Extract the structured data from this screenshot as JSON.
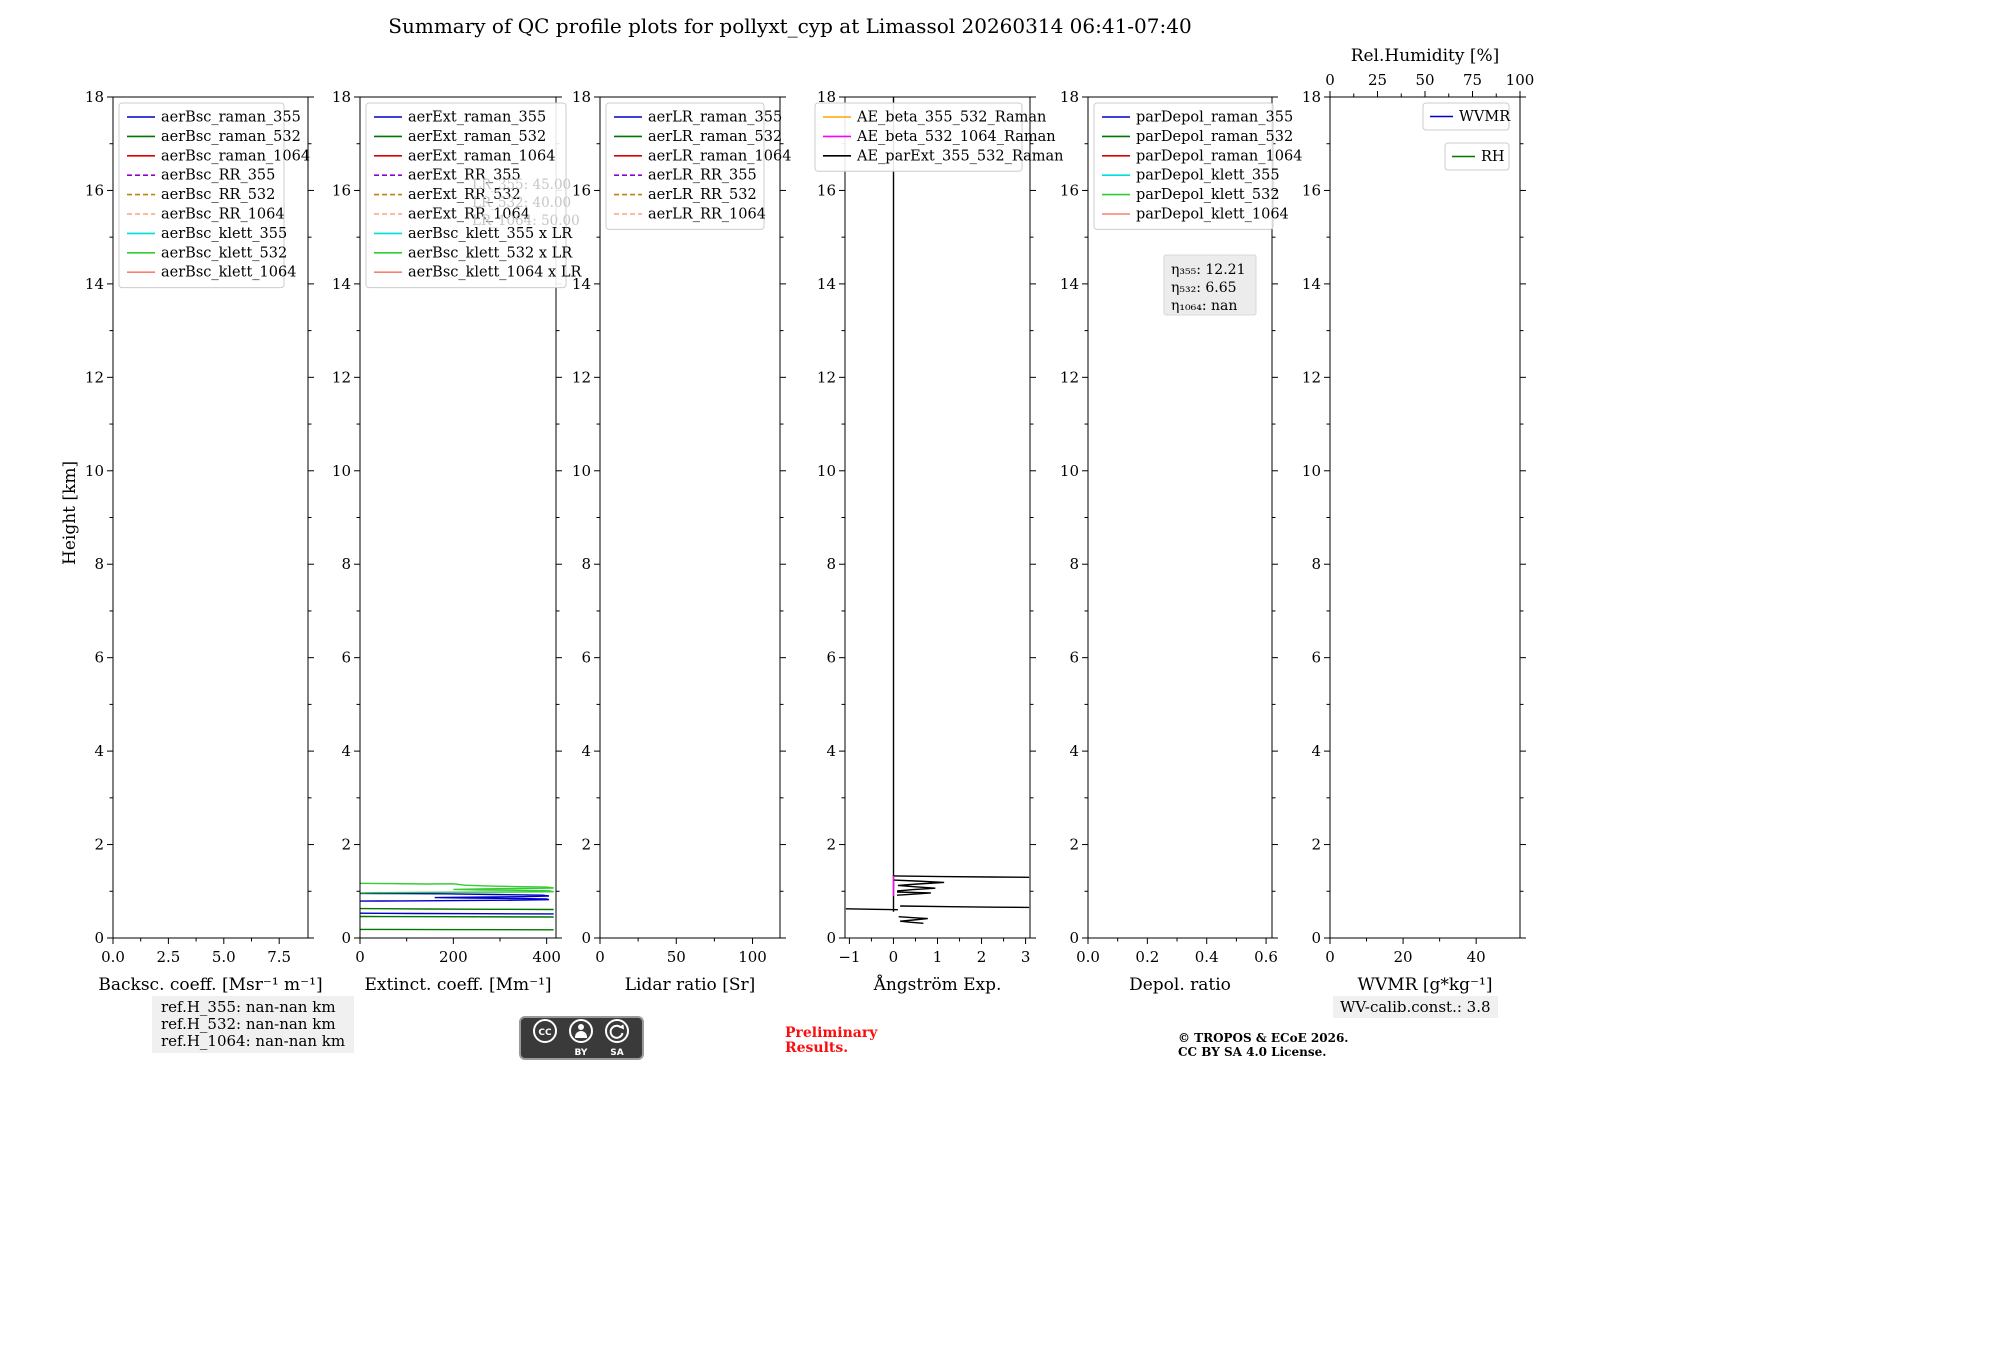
{
  "title": "Summary of QC profile plots for pollyxt_cyp at Limassol 20260314 06:41-07:40",
  "footer": {
    "refs": [
      "ref.H_355: nan-nan km",
      "ref.H_532: nan-nan km",
      "ref.H_1064: nan-nan km"
    ],
    "preliminary": [
      "Preliminary",
      "Results."
    ],
    "copyright": [
      "© TROPOS & ECoE 2026.",
      "CC BY SA 4.0 License."
    ],
    "wv_calib": "WV-calib.const.: 3.8",
    "cc_badge": {
      "cc": "CC",
      "by": "BY",
      "sa": "SA"
    }
  },
  "chart_data": {
    "type": "line",
    "title": "Summary of QC profile plots for pollyxt_cyp at Limassol 20260314 06:41-07:40",
    "ylabel": "Height [km]",
    "ylim": [
      0,
      18
    ],
    "yticks": [
      0,
      2,
      4,
      6,
      8,
      10,
      12,
      14,
      16,
      18
    ],
    "panels": [
      {
        "xlabel": "Backsc. coeff. [Msr⁻¹ m⁻¹]",
        "xlim": [
          0,
          8.8
        ],
        "xticks": [
          0,
          2.5,
          5,
          7.5
        ],
        "xtick_labels": [
          "0.0",
          "2.5",
          "5.0",
          "7.5"
        ],
        "legend": [
          {
            "label": "aerBsc_raman_355",
            "color": "#0000cc"
          },
          {
            "label": "aerBsc_raman_532",
            "color": "#007700"
          },
          {
            "label": "aerBsc_raman_1064",
            "color": "#dd0000"
          },
          {
            "label": "aerBsc_RR_355",
            "color": "#9400d3",
            "dash": true
          },
          {
            "label": "aerBsc_RR_532",
            "color": "#b8860b",
            "dash": true
          },
          {
            "label": "aerBsc_RR_1064",
            "color": "#ffa07a",
            "dash": true
          },
          {
            "label": "aerBsc_klett_355",
            "color": "#00dddd"
          },
          {
            "label": "aerBsc_klett_532",
            "color": "#33cc33"
          },
          {
            "label": "aerBsc_klett_1064",
            "color": "#fa8072"
          }
        ],
        "series": []
      },
      {
        "xlabel": "Extinct. coeff. [Mm⁻¹]",
        "xlim": [
          0,
          420
        ],
        "xticks": [
          0,
          200,
          400
        ],
        "xtick_labels": [
          "0",
          "200",
          "400"
        ],
        "legend": [
          {
            "label": "aerExt_raman_355",
            "color": "#0000cc"
          },
          {
            "label": "aerExt_raman_532",
            "color": "#007700"
          },
          {
            "label": "aerExt_raman_1064",
            "color": "#dd0000"
          },
          {
            "label": "aerExt_RR_355",
            "color": "#9400d3",
            "dash": true
          },
          {
            "label": "aerExt_RR_532",
            "color": "#b8860b",
            "dash": true
          },
          {
            "label": "aerExt_RR_1064",
            "color": "#ffa07a",
            "dash": true
          },
          {
            "label": "aerBsc_klett_355 x LR",
            "color": "#00dddd"
          },
          {
            "label": "aerBsc_klett_532 x LR",
            "color": "#33cc33"
          },
          {
            "label": "aerBsc_klett_1064 x LR",
            "color": "#fa8072"
          }
        ],
        "inline_text": {
          "color": "#c6c6c6",
          "lines": [
            "LR_355: 45.00",
            "LR_532: 40.00",
            "LR_1064: 50.00"
          ]
        },
        "series": [
          {
            "name": "aerExt_raman_355",
            "color": "#0000cc",
            "segments": [
              [
                [
                  0,
                  0.53
                ],
                [
                  120,
                  0.525
                ],
                [
                  260,
                  0.52
                ],
                [
                  415,
                  0.515
                ]
              ],
              [
                [
                  0,
                  0.955
                ],
                [
                  80,
                  0.95
                ],
                [
                  180,
                  0.945
                ],
                [
                  290,
                  0.93
                ],
                [
                  392,
                  0.915
                ],
                [
                  405,
                  0.9
                ],
                [
                  350,
                  0.885
                ],
                [
                  260,
                  0.875
                ],
                [
                  160,
                  0.865
                ],
                [
                  235,
                  0.855
                ],
                [
                  330,
                  0.845
                ],
                [
                  400,
                  0.835
                ],
                [
                  405,
                  0.82
                ],
                [
                  330,
                  0.81
                ],
                [
                  210,
                  0.8
                ],
                [
                  90,
                  0.793
                ],
                [
                  0,
                  0.79
                ]
              ]
            ]
          },
          {
            "name": "aerExt_raman_532",
            "color": "#007700",
            "segments": [
              [
                [
                  0,
                  0.63
                ],
                [
                  140,
                  0.62
                ],
                [
                  280,
                  0.615
                ],
                [
                  415,
                  0.61
                ]
              ],
              [
                [
                  0,
                  0.46
                ],
                [
                  180,
                  0.455
                ],
                [
                  415,
                  0.45
                ]
              ],
              [
                [
                  0,
                  0.185
                ],
                [
                  160,
                  0.18
                ],
                [
                  415,
                  0.175
                ]
              ]
            ]
          },
          {
            "name": "aerBsc_klett_532_x_LR",
            "color": "#33cc33",
            "segments": [
              [
                [
                  0,
                  1.17
                ],
                [
                  60,
                  1.165
                ],
                [
                  140,
                  1.155
                ],
                [
                  200,
                  1.16
                ],
                [
                  225,
                  1.13
                ],
                [
                  270,
                  1.115
                ],
                [
                  330,
                  1.1
                ],
                [
                  400,
                  1.09
                ],
                [
                  415,
                  1.07
                ],
                [
                  340,
                  1.06
                ],
                [
                  255,
                  1.05
                ],
                [
                  200,
                  1.04
                ],
                [
                  255,
                  1.03
                ],
                [
                  335,
                  1.02
                ],
                [
                  405,
                  1.01
                ],
                [
                  415,
                  0.99
                ],
                [
                  320,
                  0.985
                ],
                [
                  210,
                  0.98
                ],
                [
                  110,
                  0.975
                ],
                [
                  30,
                  0.97
                ],
                [
                  0,
                  0.965
                ]
              ]
            ]
          }
        ]
      },
      {
        "xlabel": "Lidar ratio [Sr]",
        "xlim": [
          0,
          118
        ],
        "xticks": [
          0,
          50,
          100
        ],
        "xtick_labels": [
          "0",
          "50",
          "100"
        ],
        "legend": [
          {
            "label": "aerLR_raman_355",
            "color": "#0000cc"
          },
          {
            "label": "aerLR_raman_532",
            "color": "#007700"
          },
          {
            "label": "aerLR_raman_1064",
            "color": "#dd0000"
          },
          {
            "label": "aerLR_RR_355",
            "color": "#9400d3",
            "dash": true
          },
          {
            "label": "aerLR_RR_532",
            "color": "#b8860b",
            "dash": true
          },
          {
            "label": "aerLR_RR_1064",
            "color": "#ffa07a",
            "dash": true
          }
        ],
        "series": []
      },
      {
        "xlabel": "Ångström Exp.",
        "xlim": [
          -1.1,
          3.1
        ],
        "xticks": [
          -1,
          0,
          1,
          2,
          3
        ],
        "xtick_labels": [
          "−1",
          "0",
          "1",
          "2",
          "3"
        ],
        "legend": [
          {
            "label": "AE_beta_355_532_Raman",
            "color": "#ffa500"
          },
          {
            "label": "AE_beta_532_1064_Raman",
            "color": "#ff00ff"
          },
          {
            "label": "AE_parExt_355_532_Raman",
            "color": "#000000"
          }
        ],
        "series": [
          {
            "name": "AE_parExt_355_532_Raman",
            "color": "#000000",
            "segments": [
              [
                [
                  0,
                  18
                ],
                [
                  0,
                  0.56
                ]
              ],
              [
                [
                  0,
                  1.33
                ],
                [
                  1.1,
                  1.315
                ],
                [
                  2.2,
                  1.305
                ],
                [
                  3.08,
                  1.3
                ]
              ],
              [
                [
                  0,
                  1.24
                ],
                [
                  0.5,
                  1.22
                ],
                [
                  1.15,
                  1.19
                ],
                [
                  0.55,
                  1.155
                ],
                [
                  0.1,
                  1.125
                ],
                [
                  0.5,
                  1.095
                ],
                [
                  0.95,
                  1.065
                ],
                [
                  0.45,
                  1.035
                ],
                [
                  0.08,
                  1.005
                ]
              ],
              [
                [
                  0.08,
                  0.985
                ],
                [
                  0.85,
                  0.965
                ],
                [
                  0.4,
                  0.935
                ],
                [
                  0.08,
                  0.915
                ]
              ],
              [
                [
                  0.15,
                  0.685
                ],
                [
                  1.3,
                  0.67
                ],
                [
                  2.3,
                  0.66
                ],
                [
                  3.08,
                  0.655
                ]
              ],
              [
                [
                  -1.08,
                  0.625
                ],
                [
                  -0.45,
                  0.615
                ],
                [
                  0.1,
                  0.605
                ]
              ],
              [
                [
                  0.12,
                  0.455
                ],
                [
                  0.45,
                  0.435
                ],
                [
                  0.78,
                  0.415
                ],
                [
                  0.45,
                  0.385
                ],
                [
                  0.15,
                  0.36
                ],
                [
                  0.4,
                  0.335
                ],
                [
                  0.68,
                  0.315
                ]
              ]
            ]
          },
          {
            "name": "AE_beta_532_1064_Raman",
            "color": "#ff00ff",
            "segments": [
              [
                [
                  0,
                  1.33
                ],
                [
                  0,
                  0.9
                ]
              ]
            ]
          }
        ]
      },
      {
        "xlabel": "Depol. ratio",
        "xlim": [
          0,
          0.62
        ],
        "xticks": [
          0,
          0.2,
          0.4,
          0.6
        ],
        "xtick_labels": [
          "0.0",
          "0.2",
          "0.4",
          "0.6"
        ],
        "legend": [
          {
            "label": "parDepol_raman_355",
            "color": "#0000cc"
          },
          {
            "label": "parDepol_raman_532",
            "color": "#007700"
          },
          {
            "label": "parDepol_raman_1064",
            "color": "#dd0000"
          },
          {
            "label": "parDepol_klett_355",
            "color": "#00dddd"
          },
          {
            "label": "parDepol_klett_532",
            "color": "#33cc33"
          },
          {
            "label": "parDepol_klett_1064",
            "color": "#fa8072"
          }
        ],
        "annotation_box": {
          "lines": [
            "η₃₅₅: 12.21",
            "η₅₃₂: 6.65",
            "η₁₀₆₄: nan"
          ]
        },
        "series": []
      },
      {
        "xlabel": "WVMR [g*kg⁻¹]",
        "xlim": [
          0,
          52
        ],
        "xticks": [
          0,
          20,
          40
        ],
        "xtick_labels": [
          "0",
          "20",
          "40"
        ],
        "top_axis": {
          "label": "Rel.Humidity [%]",
          "xlim": [
            0,
            100
          ],
          "xticks": [
            0,
            25,
            50,
            75,
            100
          ],
          "xtick_labels": [
            "0",
            "25",
            "50",
            "75",
            "100"
          ]
        },
        "legend": [
          {
            "label": "WVMR",
            "color": "#0000cc"
          },
          {
            "label": "RH",
            "color": "#007700"
          }
        ],
        "legend_separate": true,
        "series": []
      }
    ]
  }
}
